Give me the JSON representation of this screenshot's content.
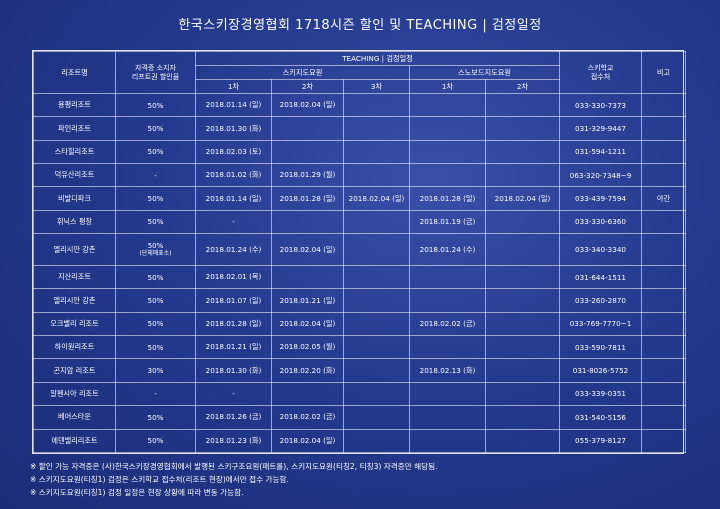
{
  "title": "한국스키장경영협회 1718시즌 할인 및 TEACHING |  검정일정",
  "header": {
    "resort": "리조트명",
    "discount_line1": "자격증 소지자",
    "discount_line2": "리프트권 할인율",
    "teaching": "TEACHING |  검정일정",
    "ski_instructor": "스키지도요원",
    "snowboard_instructor": "스노보드지도요원",
    "ski_round1": "1차",
    "ski_round2": "2차",
    "ski_round3": "3차",
    "sb_round1": "1차",
    "sb_round2": "2차",
    "school_line1": "스키학교",
    "school_line2": "접수처",
    "remark": "비고"
  },
  "rows": [
    {
      "resort": "용평리조트",
      "discount": "50%",
      "discount_sub": "",
      "ski1": "2018.01.14 (일)",
      "ski2": "2018.02.04 (일)",
      "ski3": "",
      "sb1": "",
      "sb2": "",
      "phone": "033-330-7373",
      "remark": ""
    },
    {
      "resort": "파인리조트",
      "discount": "50%",
      "discount_sub": "",
      "ski1": "2018.01.30 (화)",
      "ski2": "",
      "ski3": "",
      "sb1": "",
      "sb2": "",
      "phone": "031-329-9447",
      "remark": ""
    },
    {
      "resort": "스타힐리조트",
      "discount": "50%",
      "discount_sub": "",
      "ski1": "2018.02.03 (토)",
      "ski2": "",
      "ski3": "",
      "sb1": "",
      "sb2": "",
      "phone": "031-594-1211",
      "remark": ""
    },
    {
      "resort": "덕유산리조트",
      "discount": "-",
      "discount_sub": "",
      "ski1": "2018.01.02 (화)",
      "ski2": "2018.01.29 (월)",
      "ski3": "",
      "sb1": "",
      "sb2": "",
      "phone": "063-320-7348~9",
      "remark": ""
    },
    {
      "resort": "비발디파크",
      "discount": "50%",
      "discount_sub": "",
      "ski1": "2018.01.14 (일)",
      "ski2": "2018.01.28 (일)",
      "ski3": "2018.02.04 (일)",
      "sb1": "2018.01.28 (일)",
      "sb2": "2018.02.04 (일)",
      "phone": "033-439-7594",
      "remark": "야간"
    },
    {
      "resort": "휘닉스 평창",
      "discount": "50%",
      "discount_sub": "",
      "ski1": "-",
      "ski2": "",
      "ski3": "",
      "sb1": "2018.01.19 (금)",
      "sb2": "",
      "phone": "033-330-6360",
      "remark": ""
    },
    {
      "resort": "엘리시안 강촌",
      "discount": "50%",
      "discount_sub": "(단체매표소)",
      "ski1": "2018.01.24 (수)",
      "ski2": "2018.02.04 (일)",
      "ski3": "",
      "sb1": "2018.01.24 (수)",
      "sb2": "",
      "phone": "033-340-3340",
      "remark": ""
    },
    {
      "resort": "지산리조트",
      "discount": "50%",
      "discount_sub": "",
      "ski1": "2018.02.01 (목)",
      "ski2": "",
      "ski3": "",
      "sb1": "",
      "sb2": "",
      "phone": "031-644-1511",
      "remark": ""
    },
    {
      "resort": "엘리시안 강촌",
      "discount": "50%",
      "discount_sub": "",
      "ski1": "2018.01.07 (일)",
      "ski2": "2018.01.21 (일)",
      "ski3": "",
      "sb1": "",
      "sb2": "",
      "phone": "033-260-2870",
      "remark": ""
    },
    {
      "resort": "오크밸리 리조트",
      "discount": "50%",
      "discount_sub": "",
      "ski1": "2018.01.28 (일)",
      "ski2": "2018.02.04 (일)",
      "ski3": "",
      "sb1": "2018.02.02 (금)",
      "sb2": "",
      "phone": "033-769-7770~1",
      "remark": ""
    },
    {
      "resort": "하이원리조트",
      "discount": "50%",
      "discount_sub": "",
      "ski1": "2018.01.21 (일)",
      "ski2": "2018.02.05 (월)",
      "ski3": "",
      "sb1": "",
      "sb2": "",
      "phone": "033-590-7811",
      "remark": ""
    },
    {
      "resort": "곤지암 리조트",
      "discount": "30%",
      "discount_sub": "",
      "ski1": "2018.01.30 (화)",
      "ski2": "2018.02.20 (화)",
      "ski3": "",
      "sb1": "2018.02.13 (화)",
      "sb2": "",
      "phone": "031-8026-5752",
      "remark": ""
    },
    {
      "resort": "알펜시아 리조트",
      "discount": "-",
      "discount_sub": "",
      "ski1": "-",
      "ski2": "",
      "ski3": "",
      "sb1": "",
      "sb2": "",
      "phone": "033-339-0351",
      "remark": ""
    },
    {
      "resort": "베어스타운",
      "discount": "50%",
      "discount_sub": "",
      "ski1": "2018.01.26 (금)",
      "ski2": "2018.02.02 (금)",
      "ski3": "",
      "sb1": "",
      "sb2": "",
      "phone": "031-540-5156",
      "remark": ""
    },
    {
      "resort": "에덴밸리리조트",
      "discount": "50%",
      "discount_sub": "",
      "ski1": "2018.01.23 (화)",
      "ski2": "2018.02.04 (일)",
      "ski3": "",
      "sb1": "",
      "sb2": "",
      "phone": "055-379-8127",
      "remark": ""
    }
  ],
  "notes": [
    "※ 할인 가능 자격증은 (사)한국스키장경영협회에서 발행된 스키구조요원(패트롤), 스키지도요원(티칭2, 티칭3) 자격증만 해당됨.",
    "※ 스키지도요원(티칭1) 검정은 스키학교 접수처(리조트 현장)에서만 접수 가능함.",
    "※ 스키지도요원(티칭1) 검정 일정은 현장 상황에 따라 변동 가능함."
  ]
}
